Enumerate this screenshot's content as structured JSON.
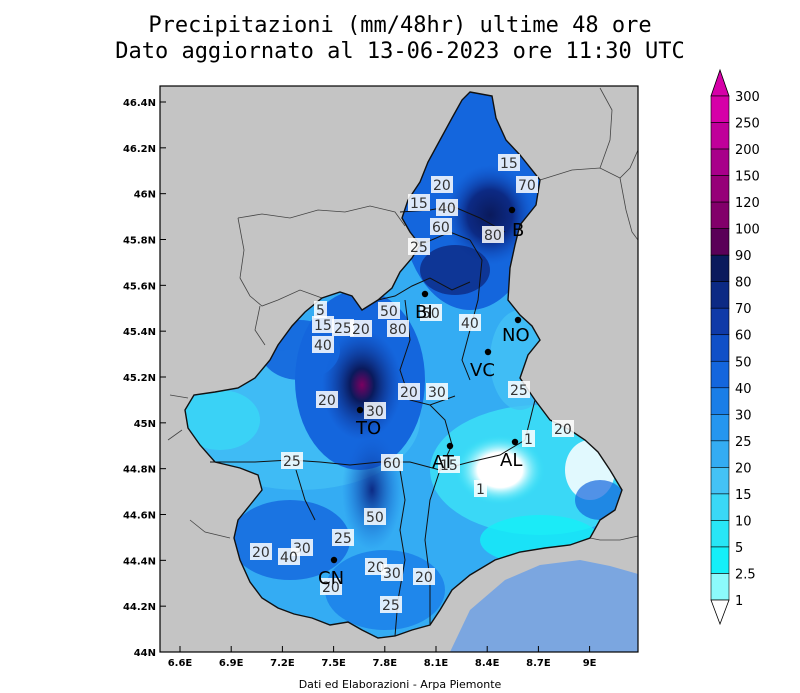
{
  "title_line1": "Precipitazioni (mm/48hr) ultime 48 ore",
  "title_line2": "Dato aggiornato al 13-06-2023 ore 11:30 UTC",
  "credit": "Dati ed Elaborazioni - Arpa Piemonte",
  "axes": {
    "lat_labels": [
      "46.4N",
      "46.2N",
      "46N",
      "45.8N",
      "45.6N",
      "45.4N",
      "45.2N",
      "45N",
      "44.8N",
      "44.6N",
      "44.4N",
      "44.2N",
      "44N"
    ],
    "lon_labels": [
      "6.6E",
      "6.9E",
      "7.2E",
      "7.5E",
      "7.8E",
      "8.1E",
      "8.4E",
      "8.7E",
      "9E"
    ]
  },
  "colorbar": {
    "labels": [
      "300",
      "250",
      "200",
      "150",
      "120",
      "100",
      "90",
      "80",
      "70",
      "60",
      "50",
      "40",
      "30",
      "25",
      "20",
      "15",
      "10",
      "5",
      "2.5",
      "1"
    ],
    "colors": [
      "#d600a8",
      "#c0009a",
      "#a8008a",
      "#960078",
      "#82006a",
      "#5a0058",
      "#0a1a5c",
      "#0c2a84",
      "#0f3aa8",
      "#1050c8",
      "#1466dd",
      "#1a7ee8",
      "#2596f0",
      "#34acf3",
      "#44c2f5",
      "#3ad8f6",
      "#28e6f6",
      "#14f0f8",
      "#8cfafc",
      "#ffffff"
    ]
  },
  "cities": [
    {
      "code": "B"
    },
    {
      "code": "BI"
    },
    {
      "code": "NO"
    },
    {
      "code": "VC"
    },
    {
      "code": "TO"
    },
    {
      "code": "AT"
    },
    {
      "code": "AL"
    },
    {
      "code": "CN"
    }
  ],
  "contour_labels": [
    "15",
    "70",
    "20",
    "40",
    "15",
    "60",
    "80",
    "25",
    "5",
    "15",
    "25",
    "20",
    "40",
    "50",
    "80",
    "50",
    "40",
    "20",
    "30",
    "20",
    "30",
    "25",
    "1",
    "15",
    "1",
    "25",
    "20",
    "60",
    "50",
    "25",
    "20",
    "30",
    "40",
    "20",
    "30",
    "20",
    "25",
    "20"
  ],
  "colors": {
    "sea": "#7ba6e0",
    "land_outside": "#c4c4c4"
  }
}
